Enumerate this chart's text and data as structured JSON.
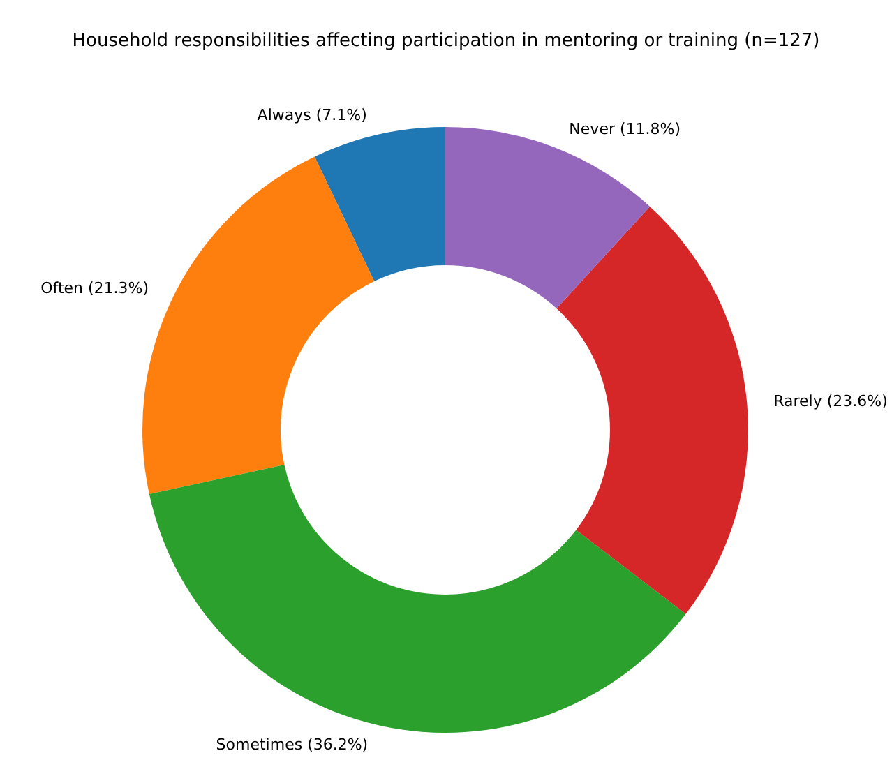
{
  "chart_data": {
    "type": "donut",
    "title": "Household responsibilities affecting participation in mentoring or training (n=127)",
    "categories": [
      "Always",
      "Often",
      "Sometimes",
      "Rarely",
      "Never"
    ],
    "values": [
      7.1,
      21.3,
      36.2,
      23.6,
      11.8
    ],
    "value_labels": [
      "(7.1%)",
      "(21.3%)",
      "(36.2%)",
      "(23.6%)",
      "(11.8%)"
    ],
    "colors": [
      "#1f77b4",
      "#ff7f0e",
      "#2ca02c",
      "#d62728",
      "#9467bd"
    ],
    "legend": false
  }
}
